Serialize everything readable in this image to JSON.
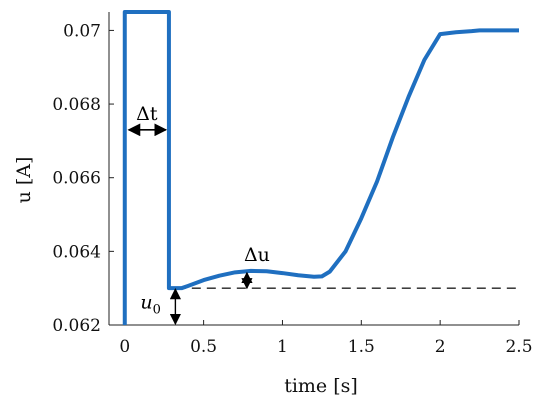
{
  "chart_data": {
    "type": "line",
    "xlabel": "time [s]",
    "ylabel": "u [A]",
    "xlim": [
      -0.1,
      2.5
    ],
    "ylim": [
      0.062,
      0.0705
    ],
    "xticks": [
      0,
      0.5,
      1,
      1.5,
      2,
      2.5
    ],
    "xtick_labels": [
      "0",
      "0.5",
      "1",
      "1.5",
      "2",
      "2.5"
    ],
    "yticks": [
      0.062,
      0.064,
      0.066,
      0.068,
      0.07
    ],
    "ytick_labels": [
      "0.062",
      "0.064",
      "0.066",
      "0.068",
      "0.07"
    ],
    "grid": false,
    "series": [
      {
        "color": "#1f6fc0",
        "x": [
          0.0,
          0.0,
          0.0,
          0.28,
          0.28,
          0.28,
          0.3,
          0.33,
          0.36,
          0.4,
          0.5,
          0.6,
          0.7,
          0.8,
          0.9,
          1.0,
          1.1,
          1.2,
          1.25,
          1.3,
          1.4,
          1.5,
          1.6,
          1.7,
          1.8,
          1.9,
          2.0,
          2.1,
          2.2,
          2.25,
          2.3,
          2.4,
          2.5
        ],
        "y": [
          0.062,
          0.0705,
          0.0705,
          0.0705,
          0.0705,
          0.063,
          0.063,
          0.063,
          0.063,
          0.06306,
          0.06322,
          0.06334,
          0.06343,
          0.06347,
          0.06346,
          0.06341,
          0.06335,
          0.06331,
          0.06332,
          0.06345,
          0.064,
          0.0649,
          0.0659,
          0.0671,
          0.0682,
          0.0692,
          0.0699,
          0.06995,
          0.06998,
          0.07,
          0.07,
          0.07,
          0.07
        ]
      }
    ],
    "reference_line": {
      "y": 0.063,
      "x_start": 0.33,
      "x_end": 2.5,
      "style": "dashed",
      "color": "#222222"
    },
    "annotations": {
      "delta_t": {
        "text": "Δt",
        "x_from": 0.0,
        "x_to": 0.28,
        "y": 0.0673
      },
      "delta_u": {
        "text": "Δu",
        "x": 0.8,
        "y_from": 0.063,
        "y_to": 0.06347
      },
      "u0": {
        "base": "u",
        "sub": "0",
        "x": 0.34,
        "y_from": 0.062,
        "y_to": 0.063
      }
    }
  }
}
